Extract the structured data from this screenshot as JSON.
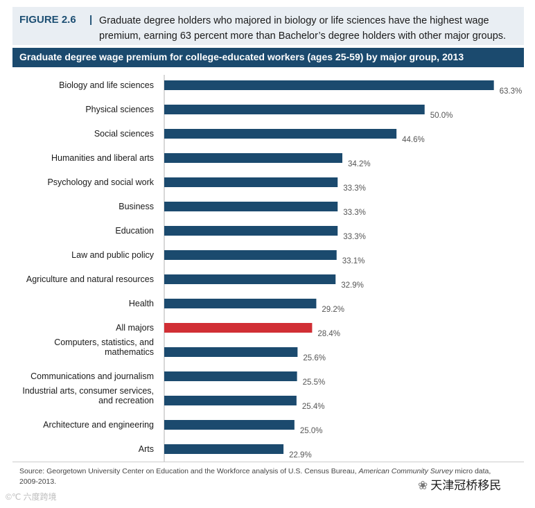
{
  "header": {
    "figure_label": "FIGURE 2.6",
    "separator": "|",
    "caption": "Graduate degree holders who majored in biology or life sciences have the highest wage premium, earning 63 percent more than Bachelor’s degree holders with other major groups."
  },
  "chart_data": {
    "type": "bar",
    "orientation": "horizontal",
    "title": "Graduate degree wage premium for college-educated workers (ages 25-59) by major group, 2013",
    "xlabel": "",
    "ylabel": "",
    "xlim": [
      0,
      70
    ],
    "grid": false,
    "unit": "%",
    "categories": [
      "Biology and life sciences",
      "Physical sciences",
      "Social sciences",
      "Humanities and liberal arts",
      "Psychology and social work",
      "Business",
      "Education",
      "Law and public policy",
      "Agriculture and natural resources",
      "Health",
      "All majors",
      "Computers, statistics, and mathematics",
      "Communications and journalism",
      "Industrial arts, consumer services, and recreation",
      "Architecture and engineering",
      "Arts"
    ],
    "category_lines": [
      [
        "Biology and life sciences"
      ],
      [
        "Physical sciences"
      ],
      [
        "Social sciences"
      ],
      [
        "Humanities and liberal arts"
      ],
      [
        "Psychology and social work"
      ],
      [
        "Business"
      ],
      [
        "Education"
      ],
      [
        "Law and public policy"
      ],
      [
        "Agriculture and natural resources"
      ],
      [
        "Health"
      ],
      [
        "All majors"
      ],
      [
        "Computers, statistics, and",
        "mathematics"
      ],
      [
        "Communications and journalism"
      ],
      [
        "Industrial arts, consumer services,",
        "and recreation"
      ],
      [
        "Architecture and engineering"
      ],
      [
        "Arts"
      ]
    ],
    "values": [
      63.3,
      50.0,
      44.6,
      34.2,
      33.3,
      33.3,
      33.3,
      33.1,
      32.9,
      29.2,
      28.4,
      25.6,
      25.5,
      25.4,
      25.0,
      22.9
    ],
    "value_labels": [
      "63.3%",
      "50.0%",
      "44.6%",
      "34.2%",
      "33.3%",
      "33.3%",
      "33.3%",
      "33.1%",
      "32.9%",
      "29.2%",
      "28.4%",
      "25.6%",
      "25.5%",
      "25.4%",
      "25.0%",
      "22.9%"
    ],
    "highlight_index": 10,
    "colors": {
      "bar": "#1b4a6e",
      "highlight": "#d12f35",
      "axis": "#b0b0b0",
      "label": "#1a1a1a",
      "value": "#555555"
    }
  },
  "source": {
    "prefix": "Source: Georgetown University Center on Education and the Workforce analysis of U.S. Census Bureau, ",
    "italic": "American Community Survey",
    "suffix": " micro data, 2009-2013."
  },
  "watermarks": {
    "left": "©℃ 六度跨境",
    "right": "天津冠桥移民",
    "right_icon": "❀"
  }
}
